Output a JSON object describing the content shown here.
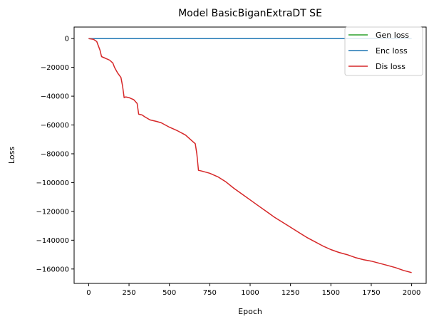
{
  "chart_data": {
    "type": "line",
    "title": "Model BasicBiganExtraDT SE",
    "xlabel": "Epoch",
    "ylabel": "Loss",
    "xlim": [
      -90,
      2090
    ],
    "ylim": [
      -170000,
      8000
    ],
    "xticks": [
      0,
      250,
      500,
      750,
      1000,
      1250,
      1500,
      1750,
      2000
    ],
    "yticks": [
      0,
      -20000,
      -40000,
      -60000,
      -80000,
      -100000,
      -120000,
      -140000,
      -160000
    ],
    "grid": false,
    "legend_position": "top-right",
    "series": [
      {
        "name": "Gen loss",
        "color": "#2ca02c",
        "x": [
          0,
          2000
        ],
        "y": [
          0,
          0
        ]
      },
      {
        "name": "Enc loss",
        "color": "#1f77b4",
        "x": [
          0,
          250,
          500,
          750,
          1000,
          1250,
          1500,
          1750,
          2000
        ],
        "y": [
          0,
          0,
          0,
          0,
          0,
          0,
          0,
          0,
          0
        ]
      },
      {
        "name": "Dis loss",
        "color": "#d62728",
        "x": [
          0,
          30,
          50,
          60,
          70,
          80,
          100,
          130,
          150,
          160,
          180,
          200,
          210,
          220,
          230,
          250,
          280,
          300,
          310,
          330,
          350,
          380,
          420,
          450,
          500,
          550,
          600,
          640,
          660,
          670,
          680,
          700,
          750,
          800,
          850,
          900,
          950,
          1000,
          1050,
          1100,
          1150,
          1200,
          1250,
          1300,
          1350,
          1400,
          1450,
          1500,
          1550,
          1600,
          1650,
          1700,
          1750,
          1800,
          1850,
          1900,
          1950,
          2000
        ],
        "y": [
          0,
          -500,
          -2000,
          -5000,
          -8000,
          -12500,
          -13500,
          -15000,
          -17000,
          -20000,
          -24000,
          -27000,
          -33000,
          -41000,
          -40500,
          -41000,
          -42500,
          -45000,
          -52500,
          -53000,
          -54500,
          -56500,
          -57500,
          -58500,
          -61500,
          -64000,
          -67000,
          -71000,
          -73000,
          -80000,
          -91500,
          -92000,
          -93500,
          -96000,
          -99500,
          -104000,
          -108000,
          -112000,
          -116000,
          -120000,
          -124000,
          -127500,
          -131000,
          -134500,
          -138000,
          -141000,
          -144000,
          -146500,
          -148500,
          -150000,
          -152000,
          -153500,
          -154500,
          -156000,
          -157500,
          -159000,
          -161000,
          -162500
        ]
      }
    ]
  }
}
